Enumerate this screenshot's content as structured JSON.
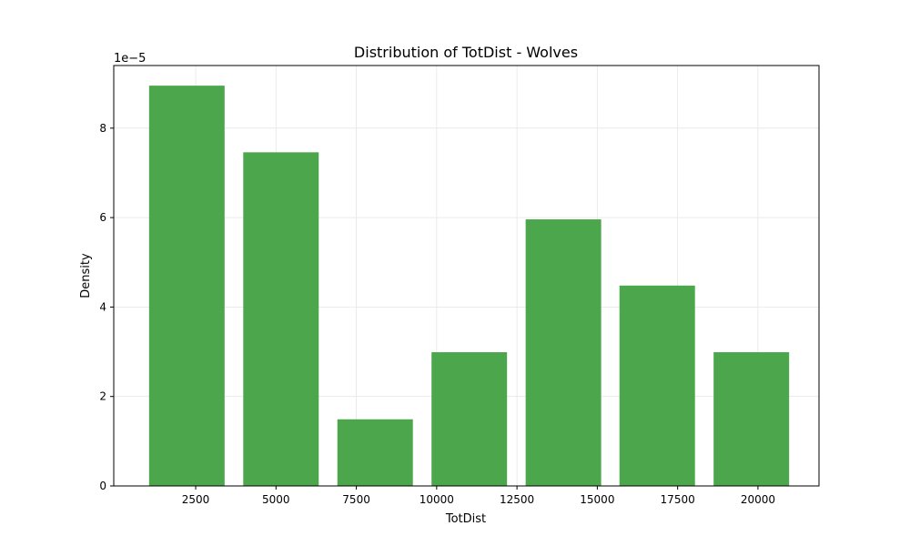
{
  "chart_data": {
    "type": "bar",
    "title": "Distribution of TotDist - Wolves",
    "xlabel": "TotDist",
    "ylabel": "Density",
    "y_offset_text": "1e−5",
    "y_multiplier": 1e-05,
    "xlim": [
      -50,
      21900
    ],
    "ylim": [
      0,
      9.4
    ],
    "x_ticks": [
      2500,
      5000,
      7500,
      10000,
      12500,
      15000,
      17500,
      20000
    ],
    "y_ticks": [
      0,
      2,
      4,
      6,
      8
    ],
    "grid": true,
    "legend": "none",
    "bar_color": "#4ca64c",
    "bins": [
      {
        "left": 1050,
        "right": 3400,
        "value": 8.95
      },
      {
        "left": 3980,
        "right": 6330,
        "value": 7.46
      },
      {
        "left": 6910,
        "right": 9260,
        "value": 1.49
      },
      {
        "left": 9840,
        "right": 12190,
        "value": 2.99
      },
      {
        "left": 12770,
        "right": 15120,
        "value": 5.96
      },
      {
        "left": 15690,
        "right": 18040,
        "value": 4.48
      },
      {
        "left": 18620,
        "right": 20970,
        "value": 2.99
      }
    ]
  }
}
